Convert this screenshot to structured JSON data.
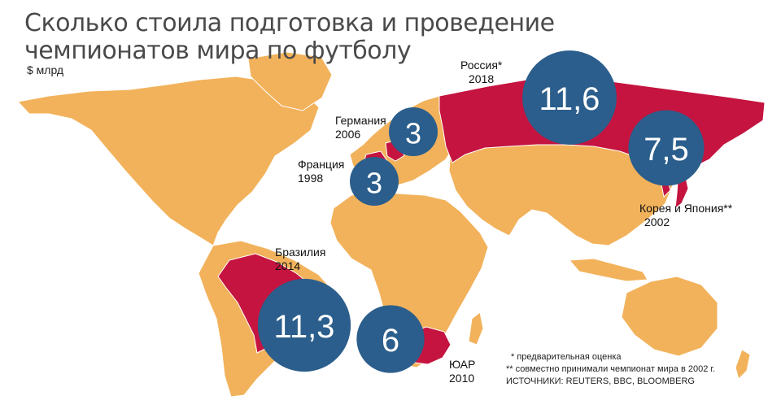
{
  "title_line1": "Сколько стоила подготовка и проведение",
  "title_line2": "чемпионатов мира по футболу",
  "unit": "$ млрд",
  "colors": {
    "land": "#f2b25b",
    "host": "#c4143f",
    "bubble": "#2b5e8c",
    "border": "#ffffff"
  },
  "map_data": {
    "hosts": [
      {
        "country": "Россия",
        "year": "2018",
        "value": "11,6",
        "amount": 11.6,
        "note_mark": "*"
      },
      {
        "country": "Бразилия",
        "year": "2014",
        "value": "11,3",
        "amount": 11.3
      },
      {
        "country": "Корея и Япония",
        "year": "2002",
        "value": "7,5",
        "amount": 7.5,
        "note_mark": "**"
      },
      {
        "country": "ЮАР",
        "year": "2010",
        "value": "6",
        "amount": 6
      },
      {
        "country": "Германия",
        "year": "2006",
        "value": "3",
        "amount": 3
      },
      {
        "country": "Франция",
        "year": "1998",
        "value": "3",
        "amount": 3
      }
    ]
  },
  "labels": {
    "russia": "Россия*",
    "russia_year": "2018",
    "germany": "Германия",
    "germany_year": "2006",
    "france": "Франция",
    "france_year": "1998",
    "korea_japan": "Корея и Япония**",
    "korea_japan_year": "2002",
    "brazil": "Бразилия",
    "brazil_year": "2014",
    "sa": "ЮАР",
    "sa_year": "2010"
  },
  "notes": {
    "note1": "* предварительная оценка",
    "note2": "** совместно принимали чемпионат мира в 2002 г.",
    "sources": "ИСТОЧНИКИ: REUTERS, BBC, BLOOMBERG"
  }
}
